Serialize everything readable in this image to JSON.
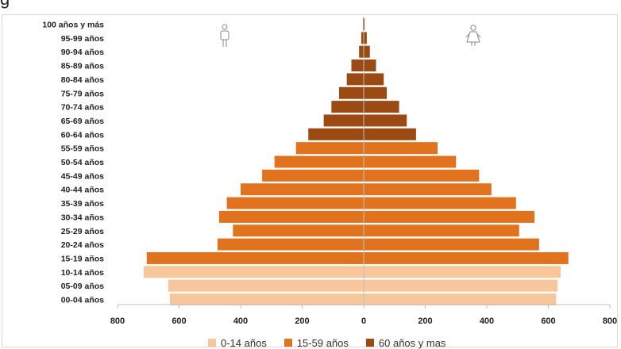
{
  "caption_fragment": "g",
  "chart_data": {
    "type": "bar",
    "orientation": "horizontal",
    "layout": "population-pyramid",
    "categories": [
      "00-04 años",
      "05-09 años",
      "10-14 años",
      "15-19 años",
      "20-24 años",
      "25-29 años",
      "30-34 años",
      "35-39 años",
      "40-44 años",
      "45-49 años",
      "50-54 años",
      "55-59 años",
      "60-64 años",
      "65-69 años",
      "70-74 años",
      "75-79 años",
      "80-84 años",
      "85-89 años",
      "90-94 años",
      "95-99 años",
      "100 años y más"
    ],
    "groups": [
      "0-14 años",
      "0-14 años",
      "0-14 años",
      "15-59 años",
      "15-59 años",
      "15-59 años",
      "15-59 años",
      "15-59 años",
      "15-59 años",
      "15-59 años",
      "15-59 años",
      "15-59 años",
      "60 años y mas",
      "60 años y mas",
      "60 años y mas",
      "60 años y mas",
      "60 años y mas",
      "60 años y mas",
      "60 años y mas",
      "60 años y mas",
      "60 años y mas"
    ],
    "series": [
      {
        "side": "left",
        "values": [
          630,
          635,
          715,
          705,
          475,
          425,
          470,
          445,
          400,
          330,
          290,
          220,
          180,
          130,
          105,
          80,
          55,
          40,
          15,
          8,
          2
        ]
      },
      {
        "side": "right",
        "values": [
          625,
          630,
          640,
          665,
          570,
          505,
          555,
          495,
          415,
          375,
          300,
          240,
          170,
          140,
          115,
          75,
          65,
          40,
          20,
          10,
          3
        ]
      }
    ],
    "xlim": [
      -800,
      800
    ],
    "xticks": [
      -800,
      -600,
      -400,
      -200,
      0,
      200,
      400,
      600,
      800
    ],
    "xtick_labels": [
      "800",
      "600",
      "400",
      "200",
      "0",
      "200",
      "400",
      "600",
      "800"
    ],
    "legend": {
      "position": "bottom",
      "items": [
        {
          "label": "0-14 años",
          "color": "#f7c79b"
        },
        {
          "label": "15-59 años",
          "color": "#e1731f"
        },
        {
          "label": "60 años y mas",
          "color": "#9a4a12"
        }
      ]
    },
    "icons": {
      "left": "male-icon",
      "right": "female-icon"
    },
    "grid": false
  }
}
